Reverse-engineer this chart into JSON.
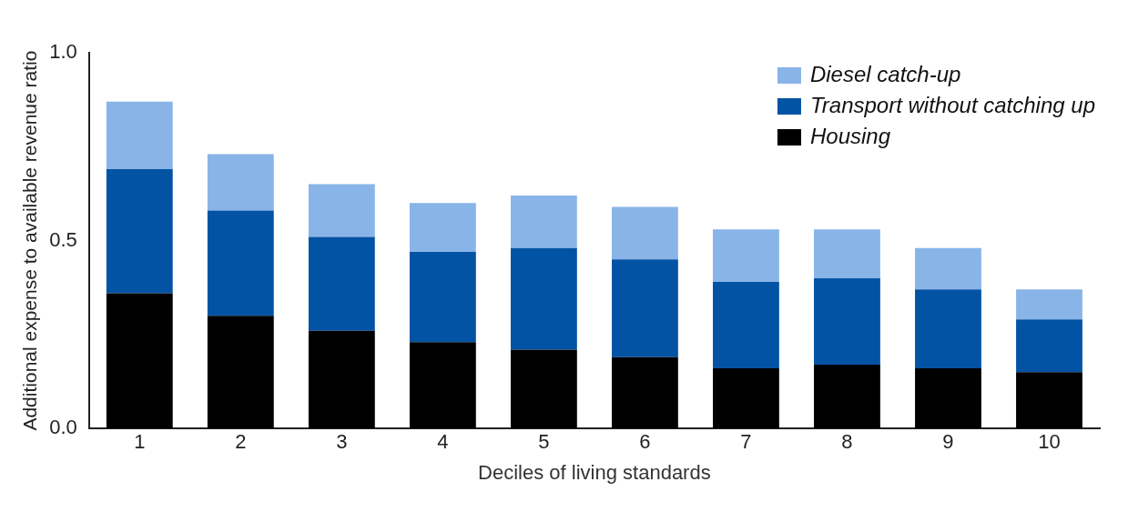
{
  "chart_data": {
    "type": "bar",
    "stacked": true,
    "xlabel": "Deciles of living standards",
    "ylabel": "Additional expense to available revenue ratio",
    "categories": [
      "1",
      "2",
      "3",
      "4",
      "5",
      "6",
      "7",
      "8",
      "9",
      "10"
    ],
    "series": [
      {
        "name": "Housing",
        "color": "#000000",
        "values": [
          0.36,
          0.3,
          0.26,
          0.23,
          0.21,
          0.19,
          0.16,
          0.17,
          0.16,
          0.15
        ]
      },
      {
        "name": "Transport without catching up",
        "color": "#0353a4",
        "values": [
          0.33,
          0.28,
          0.25,
          0.24,
          0.27,
          0.26,
          0.23,
          0.23,
          0.21,
          0.14
        ]
      },
      {
        "name": "Diesel catch-up",
        "color": "#89b4e8",
        "values": [
          0.18,
          0.15,
          0.14,
          0.13,
          0.14,
          0.14,
          0.14,
          0.13,
          0.11,
          0.08
        ]
      }
    ],
    "ylim": [
      0,
      1
    ],
    "yticks": [
      {
        "value": 0,
        "label": "0.0"
      },
      {
        "value": 0.5,
        "label": "0.5"
      },
      {
        "value": 1,
        "label": "1.0"
      }
    ],
    "grid": false,
    "legend": "top right"
  }
}
